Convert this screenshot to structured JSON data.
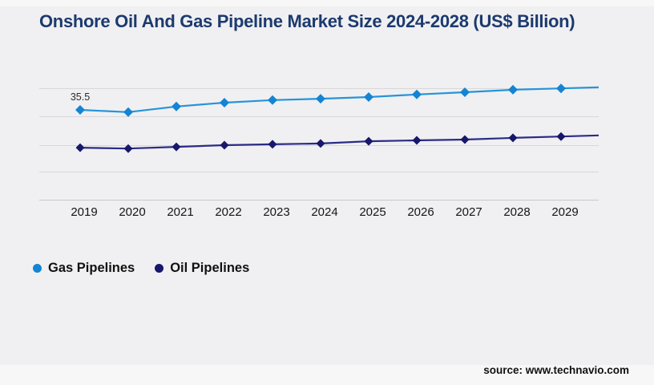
{
  "page": {
    "background": "#f0f0f2"
  },
  "chart_data": {
    "type": "line",
    "title": "Onshore Oil And Gas Pipeline Market Size 2024-2028 (US$ Billion)",
    "x": [
      "2019",
      "2020",
      "2021",
      "2022",
      "2023",
      "2024",
      "2025",
      "2026",
      "2027",
      "2028",
      "2029"
    ],
    "series": [
      {
        "name": "Gas Pipelines",
        "color": "#1484d4",
        "line_color": "#2694d9",
        "marker": "diamond",
        "marker_size": 6,
        "values": [
          35.5,
          34.7,
          36.7,
          38.1,
          39.0,
          39.5,
          40.1,
          41.0,
          41.8,
          42.7,
          43.2
        ]
      },
      {
        "name": "Oil Pipelines",
        "color": "#17176b",
        "line_color": "#2b2b86",
        "marker": "diamond",
        "marker_size": 5.5,
        "values": [
          22.0,
          21.7,
          22.3,
          22.9,
          23.2,
          23.5,
          24.3,
          24.6,
          24.9,
          25.5,
          26.0
        ]
      }
    ],
    "ylim": [
      3.4,
      46.4
    ],
    "xlabel": "",
    "ylabel": "",
    "grid": "horizontal",
    "y_axis_labels_visible": false,
    "legend_position": "bottom-left",
    "annotations": [
      {
        "series": "Gas Pipelines",
        "x": "2019",
        "text": "35.5"
      }
    ],
    "first_point_label": "35.5"
  },
  "footer": {
    "source_text": "source: www.technavio.com"
  }
}
